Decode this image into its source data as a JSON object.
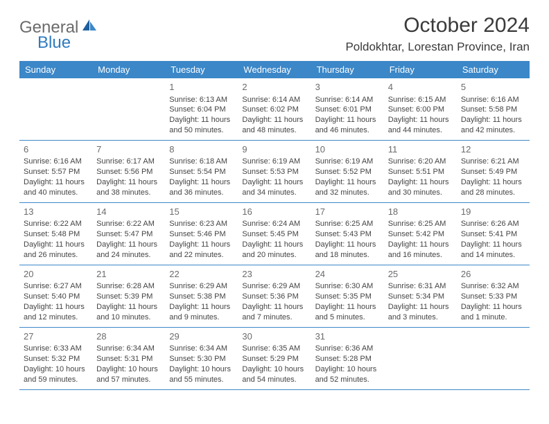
{
  "logo": {
    "gray": "General",
    "blue": "Blue"
  },
  "title": "October 2024",
  "location": "Poldokhtar, Lorestan Province, Iran",
  "colors": {
    "header_bg": "#3b87c8",
    "header_text": "#ffffff",
    "border": "#3b87c8",
    "logo_gray": "#6b6b6b",
    "logo_blue": "#2f7bbf",
    "text": "#444444",
    "bg": "#ffffff"
  },
  "day_headers": [
    "Sunday",
    "Monday",
    "Tuesday",
    "Wednesday",
    "Thursday",
    "Friday",
    "Saturday"
  ],
  "weeks": [
    [
      null,
      null,
      {
        "n": "1",
        "sr": "Sunrise: 6:13 AM",
        "ss": "Sunset: 6:04 PM",
        "d1": "Daylight: 11 hours",
        "d2": "and 50 minutes."
      },
      {
        "n": "2",
        "sr": "Sunrise: 6:14 AM",
        "ss": "Sunset: 6:02 PM",
        "d1": "Daylight: 11 hours",
        "d2": "and 48 minutes."
      },
      {
        "n": "3",
        "sr": "Sunrise: 6:14 AM",
        "ss": "Sunset: 6:01 PM",
        "d1": "Daylight: 11 hours",
        "d2": "and 46 minutes."
      },
      {
        "n": "4",
        "sr": "Sunrise: 6:15 AM",
        "ss": "Sunset: 6:00 PM",
        "d1": "Daylight: 11 hours",
        "d2": "and 44 minutes."
      },
      {
        "n": "5",
        "sr": "Sunrise: 6:16 AM",
        "ss": "Sunset: 5:58 PM",
        "d1": "Daylight: 11 hours",
        "d2": "and 42 minutes."
      }
    ],
    [
      {
        "n": "6",
        "sr": "Sunrise: 6:16 AM",
        "ss": "Sunset: 5:57 PM",
        "d1": "Daylight: 11 hours",
        "d2": "and 40 minutes."
      },
      {
        "n": "7",
        "sr": "Sunrise: 6:17 AM",
        "ss": "Sunset: 5:56 PM",
        "d1": "Daylight: 11 hours",
        "d2": "and 38 minutes."
      },
      {
        "n": "8",
        "sr": "Sunrise: 6:18 AM",
        "ss": "Sunset: 5:54 PM",
        "d1": "Daylight: 11 hours",
        "d2": "and 36 minutes."
      },
      {
        "n": "9",
        "sr": "Sunrise: 6:19 AM",
        "ss": "Sunset: 5:53 PM",
        "d1": "Daylight: 11 hours",
        "d2": "and 34 minutes."
      },
      {
        "n": "10",
        "sr": "Sunrise: 6:19 AM",
        "ss": "Sunset: 5:52 PM",
        "d1": "Daylight: 11 hours",
        "d2": "and 32 minutes."
      },
      {
        "n": "11",
        "sr": "Sunrise: 6:20 AM",
        "ss": "Sunset: 5:51 PM",
        "d1": "Daylight: 11 hours",
        "d2": "and 30 minutes."
      },
      {
        "n": "12",
        "sr": "Sunrise: 6:21 AM",
        "ss": "Sunset: 5:49 PM",
        "d1": "Daylight: 11 hours",
        "d2": "and 28 minutes."
      }
    ],
    [
      {
        "n": "13",
        "sr": "Sunrise: 6:22 AM",
        "ss": "Sunset: 5:48 PM",
        "d1": "Daylight: 11 hours",
        "d2": "and 26 minutes."
      },
      {
        "n": "14",
        "sr": "Sunrise: 6:22 AM",
        "ss": "Sunset: 5:47 PM",
        "d1": "Daylight: 11 hours",
        "d2": "and 24 minutes."
      },
      {
        "n": "15",
        "sr": "Sunrise: 6:23 AM",
        "ss": "Sunset: 5:46 PM",
        "d1": "Daylight: 11 hours",
        "d2": "and 22 minutes."
      },
      {
        "n": "16",
        "sr": "Sunrise: 6:24 AM",
        "ss": "Sunset: 5:45 PM",
        "d1": "Daylight: 11 hours",
        "d2": "and 20 minutes."
      },
      {
        "n": "17",
        "sr": "Sunrise: 6:25 AM",
        "ss": "Sunset: 5:43 PM",
        "d1": "Daylight: 11 hours",
        "d2": "and 18 minutes."
      },
      {
        "n": "18",
        "sr": "Sunrise: 6:25 AM",
        "ss": "Sunset: 5:42 PM",
        "d1": "Daylight: 11 hours",
        "d2": "and 16 minutes."
      },
      {
        "n": "19",
        "sr": "Sunrise: 6:26 AM",
        "ss": "Sunset: 5:41 PM",
        "d1": "Daylight: 11 hours",
        "d2": "and 14 minutes."
      }
    ],
    [
      {
        "n": "20",
        "sr": "Sunrise: 6:27 AM",
        "ss": "Sunset: 5:40 PM",
        "d1": "Daylight: 11 hours",
        "d2": "and 12 minutes."
      },
      {
        "n": "21",
        "sr": "Sunrise: 6:28 AM",
        "ss": "Sunset: 5:39 PM",
        "d1": "Daylight: 11 hours",
        "d2": "and 10 minutes."
      },
      {
        "n": "22",
        "sr": "Sunrise: 6:29 AM",
        "ss": "Sunset: 5:38 PM",
        "d1": "Daylight: 11 hours",
        "d2": "and 9 minutes."
      },
      {
        "n": "23",
        "sr": "Sunrise: 6:29 AM",
        "ss": "Sunset: 5:36 PM",
        "d1": "Daylight: 11 hours",
        "d2": "and 7 minutes."
      },
      {
        "n": "24",
        "sr": "Sunrise: 6:30 AM",
        "ss": "Sunset: 5:35 PM",
        "d1": "Daylight: 11 hours",
        "d2": "and 5 minutes."
      },
      {
        "n": "25",
        "sr": "Sunrise: 6:31 AM",
        "ss": "Sunset: 5:34 PM",
        "d1": "Daylight: 11 hours",
        "d2": "and 3 minutes."
      },
      {
        "n": "26",
        "sr": "Sunrise: 6:32 AM",
        "ss": "Sunset: 5:33 PM",
        "d1": "Daylight: 11 hours",
        "d2": "and 1 minute."
      }
    ],
    [
      {
        "n": "27",
        "sr": "Sunrise: 6:33 AM",
        "ss": "Sunset: 5:32 PM",
        "d1": "Daylight: 10 hours",
        "d2": "and 59 minutes."
      },
      {
        "n": "28",
        "sr": "Sunrise: 6:34 AM",
        "ss": "Sunset: 5:31 PM",
        "d1": "Daylight: 10 hours",
        "d2": "and 57 minutes."
      },
      {
        "n": "29",
        "sr": "Sunrise: 6:34 AM",
        "ss": "Sunset: 5:30 PM",
        "d1": "Daylight: 10 hours",
        "d2": "and 55 minutes."
      },
      {
        "n": "30",
        "sr": "Sunrise: 6:35 AM",
        "ss": "Sunset: 5:29 PM",
        "d1": "Daylight: 10 hours",
        "d2": "and 54 minutes."
      },
      {
        "n": "31",
        "sr": "Sunrise: 6:36 AM",
        "ss": "Sunset: 5:28 PM",
        "d1": "Daylight: 10 hours",
        "d2": "and 52 minutes."
      },
      null,
      null
    ]
  ]
}
